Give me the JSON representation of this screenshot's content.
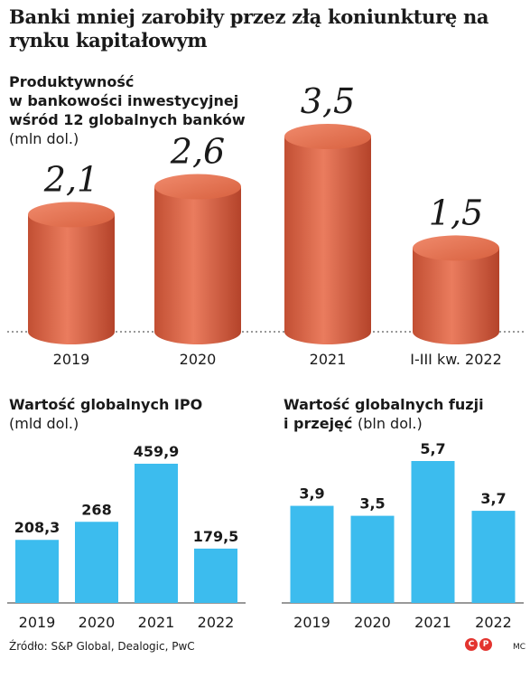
{
  "title": "Banki mniej zarobiły przez złą koniunkturę na rynku kapitałowym",
  "sections": {
    "productivity": {
      "title_line1": "Produktywność",
      "title_line2": "w bankowości inwestycyjnej",
      "title_line3": "wśród 12 globalnych banków",
      "unit": "(mln dol.)"
    },
    "ipo": {
      "title": "Wartość globalnych IPO",
      "unit": "(mld dol.)"
    },
    "mna": {
      "title_line1": "Wartość globalnych fuzji",
      "title_line2": "i przejęć",
      "unit": "(bln dol.)"
    }
  },
  "source": "Źródło: S&P Global, Dealogic, PwC",
  "author": "MC",
  "logo_letters": [
    "C",
    "P"
  ],
  "colors": {
    "cylinder": "#e0694a",
    "cylinder_dark": "#b9452a",
    "bar": "#3cbcee",
    "logo": "#e3342f"
  },
  "chart_data": [
    {
      "type": "bar",
      "style": "3d-cylinder",
      "title": "Produktywność w bankowości inwestycyjnej wśród 12 globalnych banków",
      "ylabel": "(mln dol.)",
      "categories": [
        "2019",
        "2020",
        "2021",
        "I-III kw. 2022"
      ],
      "values": [
        2.1,
        2.6,
        3.5,
        1.5
      ],
      "labels": [
        "2,1",
        "2,6",
        "3,5",
        "1,5"
      ],
      "ylim": [
        0,
        3.5
      ]
    },
    {
      "type": "bar",
      "title": "Wartość globalnych IPO",
      "ylabel": "(mld dol.)",
      "categories": [
        "2019",
        "2020",
        "2021",
        "2022"
      ],
      "values": [
        208.3,
        268,
        459.9,
        179.5
      ],
      "labels": [
        "208,3",
        "268",
        "459,9",
        "179,5"
      ],
      "ylim": [
        0,
        459.9
      ]
    },
    {
      "type": "bar",
      "title": "Wartość globalnych fuzji i przejęć",
      "ylabel": "(bln dol.)",
      "categories": [
        "2019",
        "2020",
        "2021",
        "2022"
      ],
      "values": [
        3.9,
        3.5,
        5.7,
        3.7
      ],
      "labels": [
        "3,9",
        "3,5",
        "5,7",
        "3,7"
      ],
      "ylim": [
        0,
        5.7
      ]
    }
  ]
}
